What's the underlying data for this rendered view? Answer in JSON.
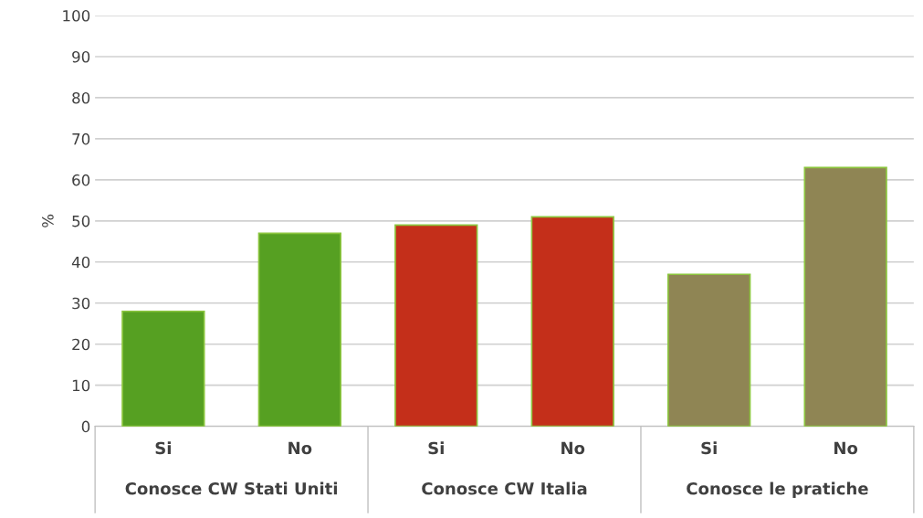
{
  "chart_data": {
    "type": "bar",
    "ylabel": "%",
    "categories": [
      "Si",
      "No",
      "Si",
      "No",
      "Si",
      "No"
    ],
    "values": [
      28,
      47,
      49,
      51,
      37,
      63
    ],
    "colors": [
      "#56a022",
      "#56a022",
      "#c42f1a",
      "#c42f1a",
      "#8f8554",
      "#8f8554"
    ],
    "ylim": [
      0,
      100
    ],
    "yticks": [
      0,
      10,
      20,
      30,
      40,
      50,
      60,
      70,
      80,
      90,
      100
    ],
    "grid": "y",
    "annotations": [
      "Conosce CW Stati Uniti",
      "Conosce CW Italia",
      "Conosce le pratiche"
    ]
  }
}
